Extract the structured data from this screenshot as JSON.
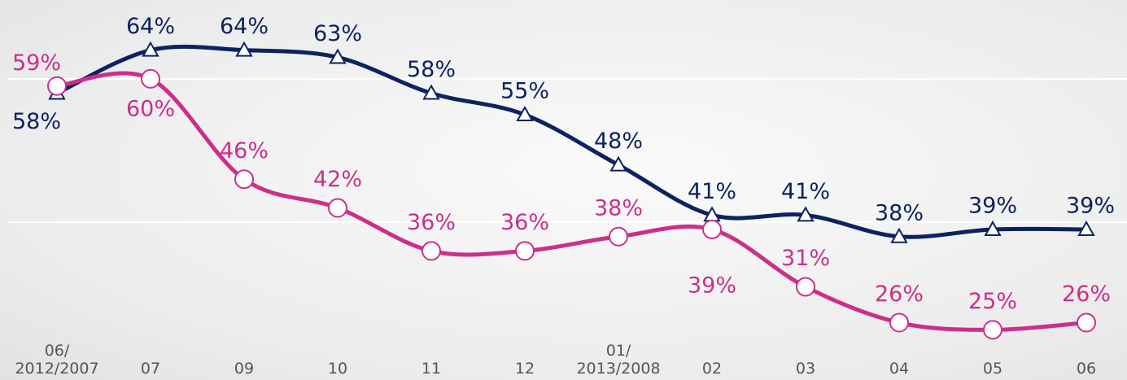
{
  "chart_data": {
    "type": "line",
    "categories": [
      "06/\n2012/2007",
      "07",
      "09",
      "10",
      "11",
      "12",
      "01/\n2013/2008",
      "02",
      "03",
      "04",
      "05",
      "06"
    ],
    "series": [
      {
        "color": "#0d2260",
        "marker": "triangle",
        "values": [
          58,
          64,
          64,
          63,
          58,
          55,
          48,
          41,
          41,
          38,
          39,
          39
        ],
        "value_labels": [
          "58%",
          "64%",
          "64%",
          "63%",
          "58%",
          "55%",
          "48%",
          "41%",
          "41%",
          "38%",
          "39%",
          "39%"
        ]
      },
      {
        "color": "#cc2f8a",
        "marker": "circle",
        "values": [
          59,
          60,
          46,
          42,
          36,
          36,
          38,
          39,
          31,
          26,
          25,
          26
        ],
        "value_labels": [
          "59%",
          "60%",
          "46%",
          "42%",
          "36%",
          "36%",
          "38%",
          "39%",
          "31%",
          "26%",
          "25%",
          "26%"
        ]
      }
    ],
    "ylim": [
      18,
      71
    ],
    "gridlines": [
      40,
      60
    ],
    "grid": true
  }
}
